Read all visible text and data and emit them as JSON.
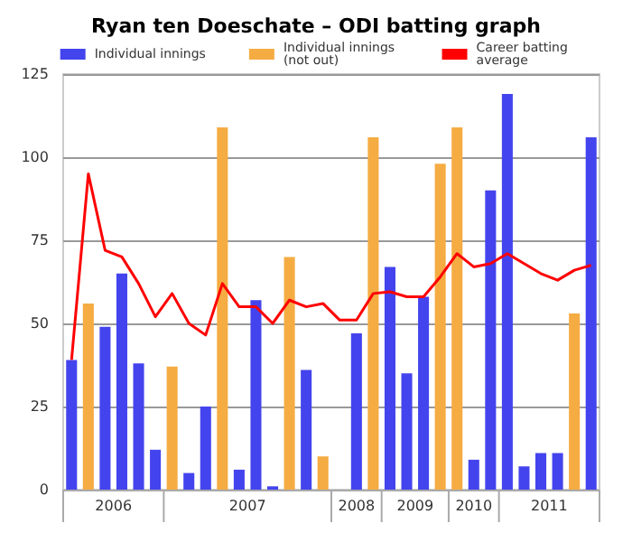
{
  "chart_data": {
    "type": "bar",
    "title": "Ryan ten Doeschate – ODI batting graph",
    "categories": [
      null,
      null,
      null,
      null,
      null,
      null,
      null,
      null,
      null,
      null,
      null,
      null,
      null,
      null,
      null,
      null,
      null,
      null,
      null,
      null,
      null,
      null,
      null,
      null,
      null,
      null,
      null,
      null,
      null,
      null,
      null,
      null
    ],
    "series": [
      {
        "name": "Individual innings",
        "color": "#4444ee",
        "values": [
          39,
          null,
          49,
          65,
          38,
          12,
          null,
          5,
          25,
          null,
          6,
          57,
          1,
          null,
          36,
          null,
          0,
          47,
          null,
          67,
          35,
          58,
          null,
          null,
          9,
          90,
          119,
          7,
          11,
          11,
          null,
          106
        ]
      },
      {
        "name": "Individual innings (not out)",
        "color": "#f5ac42",
        "values": [
          null,
          56,
          null,
          null,
          null,
          null,
          37,
          null,
          null,
          109,
          null,
          null,
          null,
          70,
          null,
          10,
          null,
          null,
          106,
          null,
          null,
          null,
          98,
          109,
          null,
          null,
          null,
          null,
          null,
          null,
          53,
          null
        ]
      },
      {
        "name": "Career batting average",
        "type": "line",
        "color": "#ff0000",
        "values": [
          39,
          95,
          72,
          70,
          62,
          52,
          59,
          50,
          46.5,
          62,
          55,
          55,
          50,
          57,
          55,
          56,
          51,
          51,
          59,
          59.5,
          58,
          58,
          64,
          71,
          67,
          68,
          71,
          68,
          65,
          63,
          66,
          67.5
        ]
      }
    ],
    "stacked": true,
    "ylim": [
      0,
      125
    ],
    "yticks": [
      0,
      25,
      50,
      75,
      100,
      125
    ],
    "grid": "y",
    "legend": "top",
    "marker": "none",
    "annotations": [
      "2006",
      "2007",
      "2008",
      "2009",
      "2010",
      "2011"
    ]
  }
}
